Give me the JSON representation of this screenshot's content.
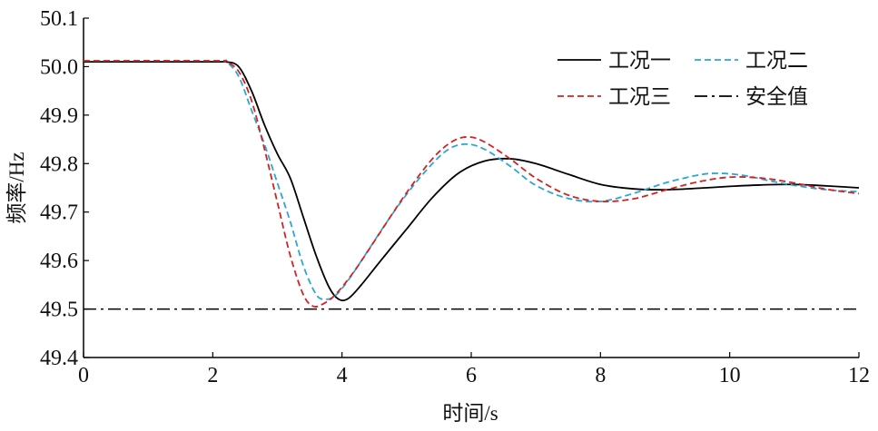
{
  "chart_data": {
    "type": "line",
    "xlabel": "时间/s",
    "ylabel": "频率/Hz",
    "xlim": [
      0,
      12
    ],
    "ylim": [
      49.4,
      50.1
    ],
    "xticks": [
      "0",
      "2",
      "4",
      "6",
      "8",
      "10",
      "12"
    ],
    "yticks": [
      "49.4",
      "49.5",
      "49.6",
      "49.7",
      "49.8",
      "49.9",
      "50.0",
      "50.1"
    ],
    "grid": false,
    "legend_position": "top-right",
    "series": [
      {
        "name": "工况一",
        "color": "#000000",
        "dash": "solid",
        "x": [
          0,
          2.0,
          2.2,
          2.4,
          2.6,
          2.8,
          3.0,
          3.2,
          3.4,
          3.6,
          3.8,
          3.95,
          4.1,
          4.3,
          4.6,
          5.0,
          5.4,
          5.8,
          6.2,
          6.6,
          7.0,
          7.5,
          8.0,
          8.5,
          9.0,
          9.5,
          10.0,
          10.5,
          11.0,
          11.5,
          12.0
        ],
        "y": [
          50.01,
          50.01,
          50.01,
          50.0,
          49.95,
          49.88,
          49.82,
          49.77,
          49.69,
          49.61,
          49.545,
          49.52,
          49.522,
          49.55,
          49.6,
          49.665,
          49.73,
          49.78,
          49.805,
          49.81,
          49.8,
          49.778,
          49.757,
          49.748,
          49.746,
          49.749,
          49.753,
          49.756,
          49.757,
          49.754,
          49.75
        ]
      },
      {
        "name": "工况二",
        "color": "#2aa6d6",
        "dash": "dashed",
        "x": [
          0,
          2.0,
          2.2,
          2.4,
          2.6,
          2.8,
          3.0,
          3.2,
          3.4,
          3.6,
          3.75,
          3.9,
          4.1,
          4.4,
          4.8,
          5.2,
          5.6,
          5.9,
          6.2,
          6.6,
          7.0,
          7.5,
          8.0,
          8.5,
          9.0,
          9.5,
          9.8,
          10.2,
          10.6,
          11.0,
          11.5,
          12.0
        ],
        "y": [
          50.012,
          50.012,
          50.01,
          49.98,
          49.91,
          49.84,
          49.76,
          49.68,
          49.59,
          49.53,
          49.52,
          49.528,
          49.56,
          49.62,
          49.7,
          49.77,
          49.825,
          49.84,
          49.83,
          49.795,
          49.755,
          49.728,
          49.722,
          49.738,
          49.76,
          49.776,
          49.78,
          49.776,
          49.765,
          49.755,
          49.746,
          49.742
        ]
      },
      {
        "name": "工况三",
        "color": "#d62020",
        "dash": "dashed",
        "x": [
          0,
          2.0,
          2.2,
          2.4,
          2.6,
          2.8,
          3.0,
          3.2,
          3.4,
          3.55,
          3.7,
          3.9,
          4.2,
          4.6,
          5.0,
          5.4,
          5.7,
          5.95,
          6.2,
          6.6,
          7.0,
          7.5,
          8.0,
          8.5,
          9.0,
          9.5,
          10.0,
          10.5,
          11.0,
          11.5,
          12.0
        ],
        "y": [
          50.012,
          50.012,
          50.01,
          49.99,
          49.93,
          49.83,
          49.72,
          49.61,
          49.53,
          49.506,
          49.51,
          49.53,
          49.58,
          49.66,
          49.74,
          49.81,
          49.845,
          49.855,
          49.845,
          49.81,
          49.77,
          49.735,
          49.722,
          49.727,
          49.745,
          49.762,
          49.772,
          49.77,
          49.76,
          49.747,
          49.738
        ]
      },
      {
        "name": "安全值",
        "color": "#000000",
        "dash": "dashdot",
        "x": [
          0,
          12
        ],
        "y": [
          49.5,
          49.5
        ]
      }
    ]
  }
}
